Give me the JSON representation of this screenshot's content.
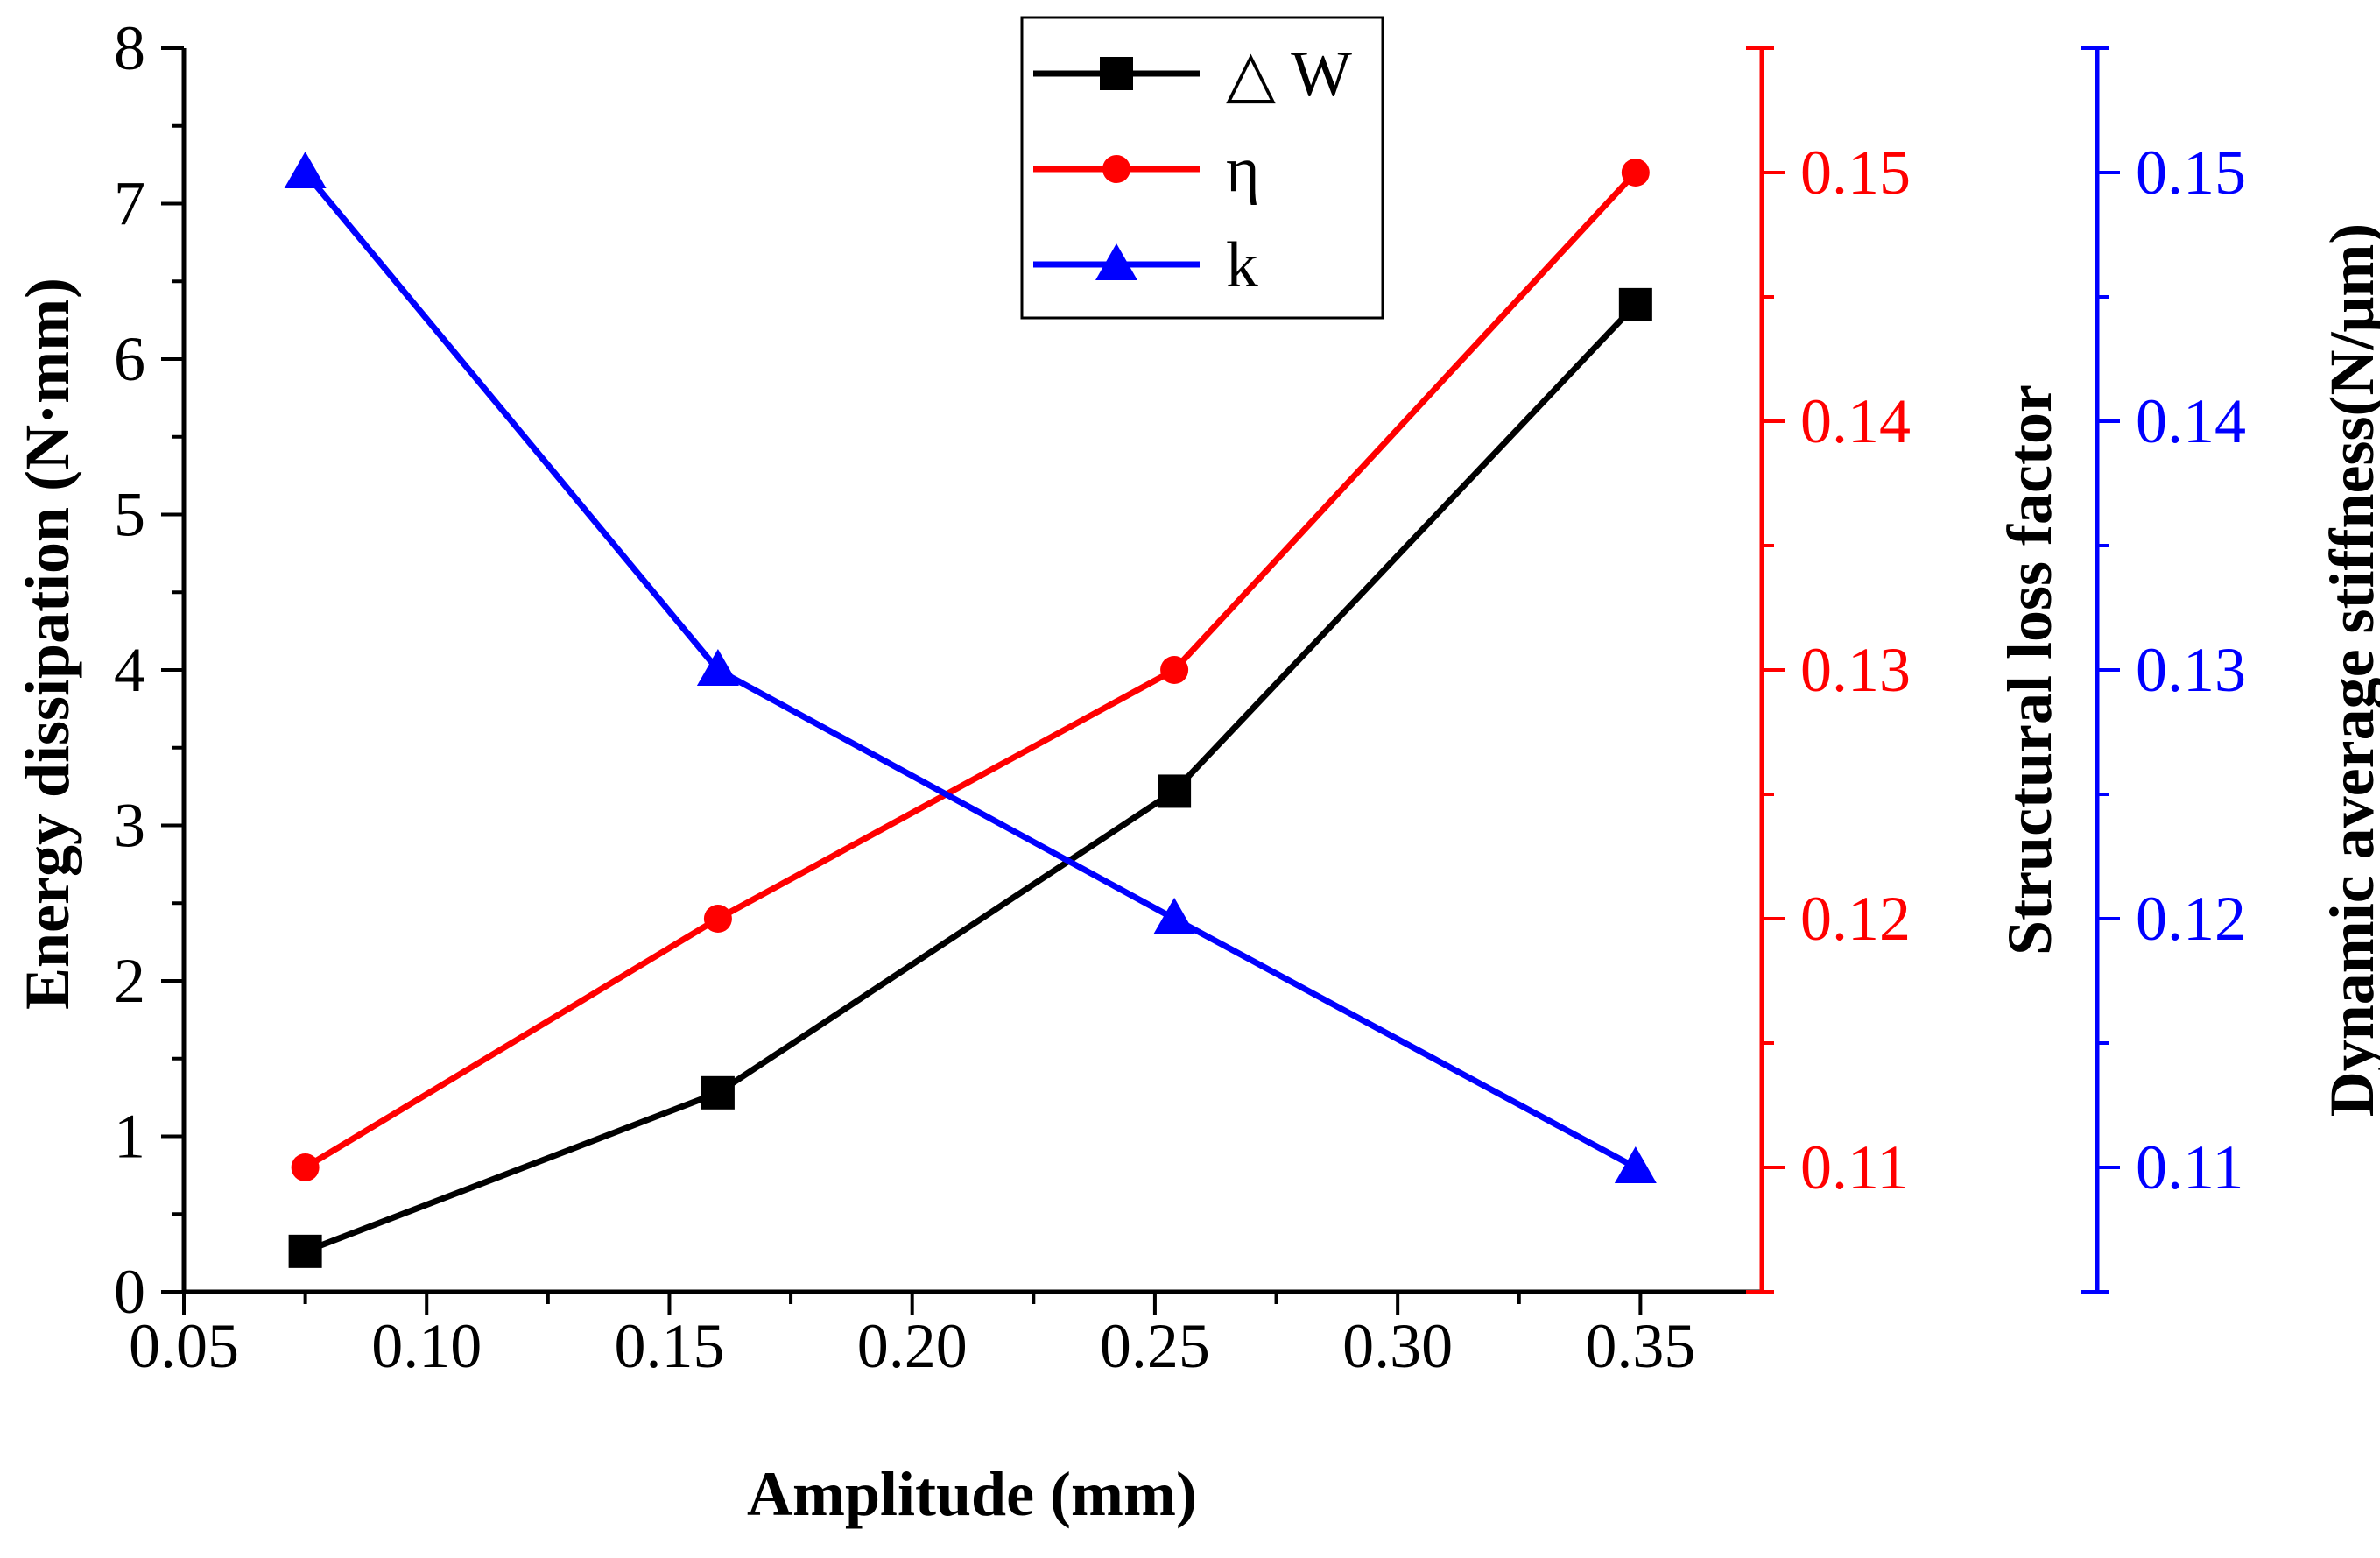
{
  "chart_data": {
    "type": "line",
    "x": [
      0.075,
      0.16,
      0.254,
      0.349
    ],
    "xlabel": "Amplitude (mm)",
    "xlim": [
      0.05,
      0.375
    ],
    "xticks": [
      "0.05",
      "0.10",
      "0.15",
      "0.20",
      "0.25",
      "0.30",
      "0.35"
    ],
    "series": [
      {
        "name": "△ W",
        "axis": "left",
        "color": "#000000",
        "marker": "square",
        "values": [
          0.26,
          1.28,
          3.22,
          6.35
        ]
      },
      {
        "name": "η",
        "axis": "right1",
        "color": "#ff0000",
        "marker": "circle",
        "values": [
          0.11,
          0.12,
          0.13,
          0.15
        ]
      },
      {
        "name": "k",
        "axis": "right2",
        "color": "#0000ff",
        "marker": "triangle",
        "values": [
          0.15,
          0.13,
          0.12,
          0.11
        ]
      }
    ],
    "axes": {
      "left": {
        "label": "Energy dissipation (N·mm)",
        "ylim": [
          0,
          8
        ],
        "ticks": [
          "0",
          "1",
          "2",
          "3",
          "4",
          "5",
          "6",
          "7",
          "8"
        ],
        "color": "#000000"
      },
      "right1": {
        "label": "Structural loss factor",
        "ylim": [
          0.105,
          0.155
        ],
        "ticks": [
          "0.11",
          "0.12",
          "0.13",
          "0.14",
          "0.15"
        ],
        "color": "#ff0000"
      },
      "right2": {
        "label": "Dynamic average stiffness(N/μm)",
        "ylim": [
          0.105,
          0.155
        ],
        "ticks": [
          "0.11",
          "0.12",
          "0.13",
          "0.14",
          "0.15"
        ],
        "color": "#0000ff"
      }
    },
    "legend": {
      "position": "top-center",
      "entries": [
        "△ W",
        "η",
        "k"
      ]
    },
    "grid": false
  }
}
